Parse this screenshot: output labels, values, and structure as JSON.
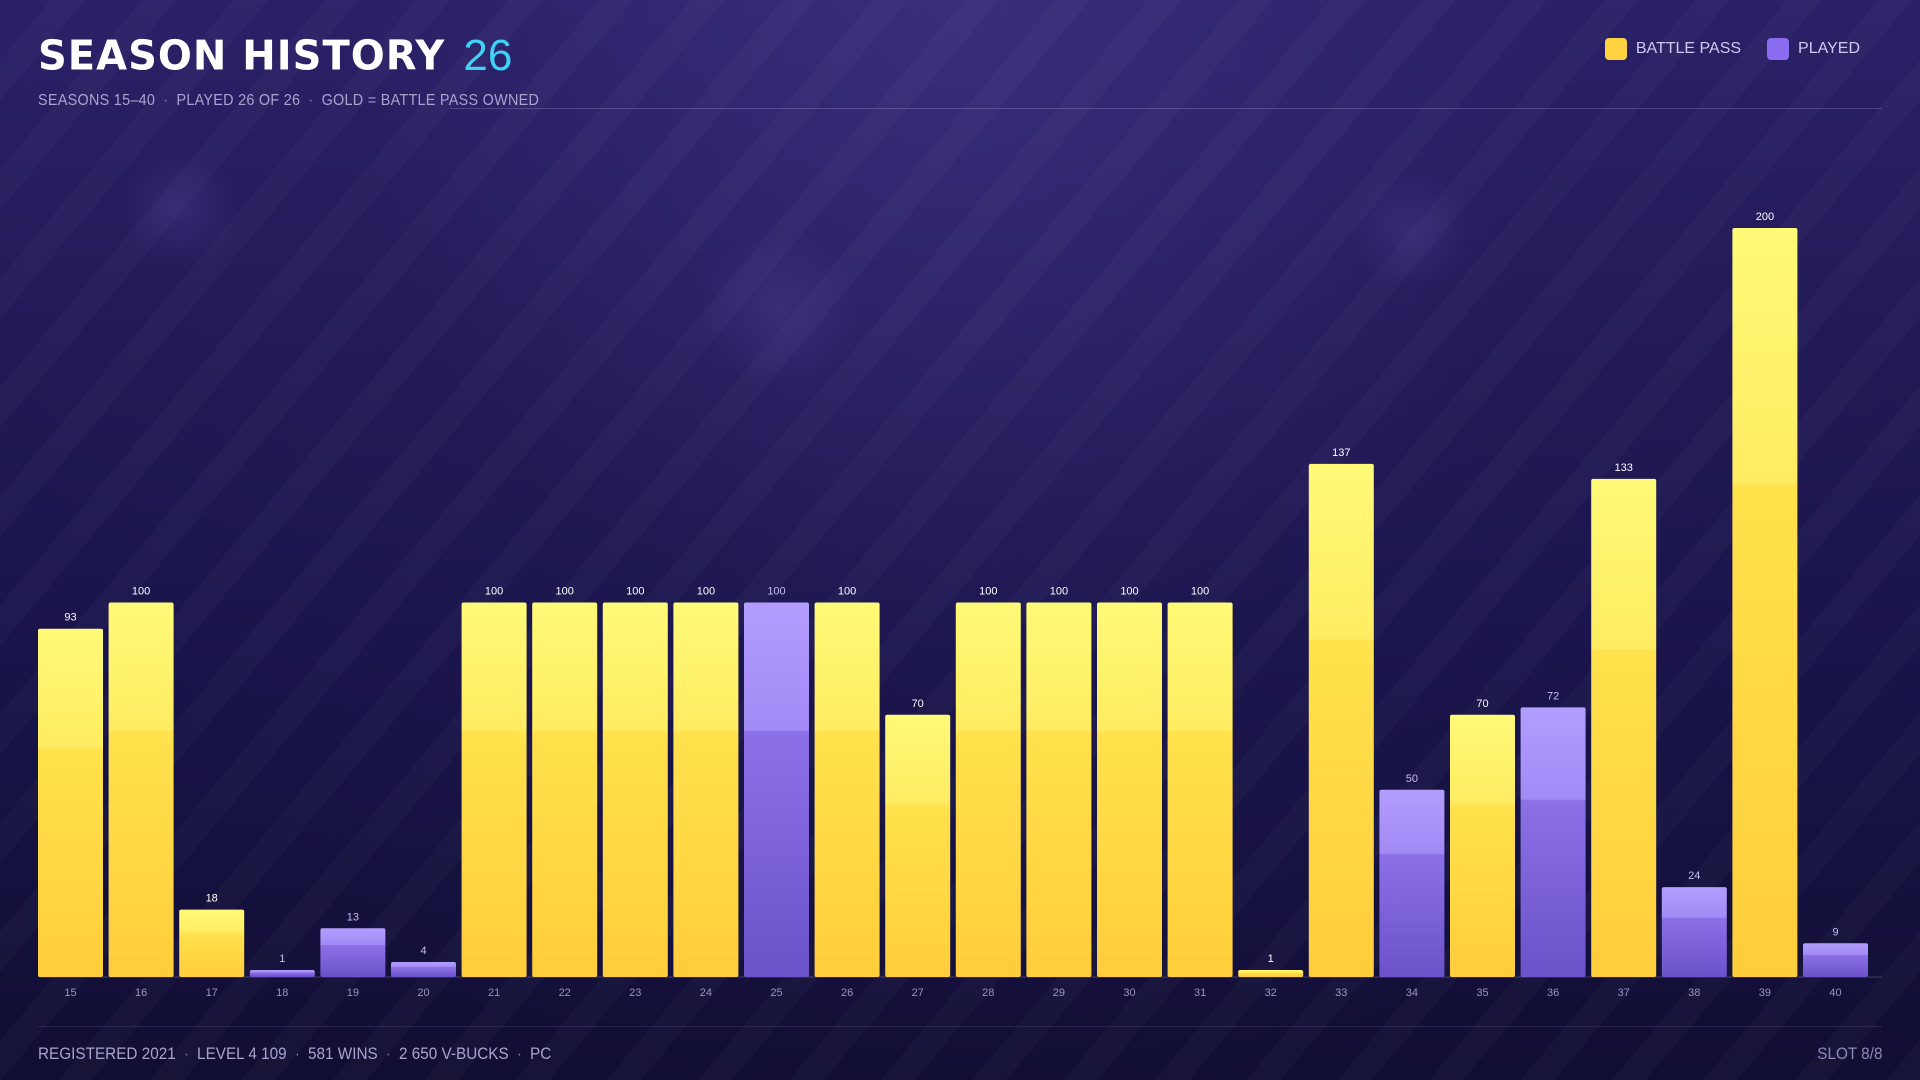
{
  "header": {
    "title": "SEASON HISTORY",
    "count": "26",
    "subtitle_parts": [
      "SEASONS 15–40",
      "PLAYED 26 OF 26",
      "GOLD = BATTLE PASS OWNED"
    ]
  },
  "legend": [
    {
      "label": "BATTLE PASS",
      "color": "#ffd23f"
    },
    {
      "label": "PLAYED",
      "color": "#8a6cf0"
    }
  ],
  "footer": {
    "registered": "REGISTERED 2021",
    "level": "LEVEL 4 109",
    "wins": "581 WINS",
    "vbucks": "2 650 V-BUCKS",
    "platform": "PC",
    "slot": "SLOT 8/8"
  },
  "colors": {
    "battle_pass": "#ffd23f",
    "played": "#8a6cf0",
    "accent": "#3fd2f5"
  },
  "chart_data": {
    "type": "bar",
    "title": "SEASON HISTORY",
    "categories": [
      "15",
      "16",
      "17",
      "18",
      "19",
      "20",
      "21",
      "22",
      "23",
      "24",
      "25",
      "26",
      "27",
      "28",
      "29",
      "30",
      "31",
      "32",
      "33",
      "34",
      "35",
      "36",
      "37",
      "38",
      "39",
      "40"
    ],
    "values": [
      93,
      100,
      18,
      1,
      13,
      4,
      100,
      100,
      100,
      100,
      100,
      100,
      70,
      100,
      100,
      100,
      100,
      1,
      137,
      50,
      70,
      72,
      133,
      24,
      200,
      9
    ],
    "battle_pass": [
      true,
      true,
      true,
      false,
      false,
      false,
      true,
      true,
      true,
      true,
      false,
      true,
      true,
      true,
      true,
      true,
      true,
      true,
      true,
      false,
      true,
      false,
      true,
      false,
      true,
      false
    ],
    "series": [
      {
        "name": "BATTLE PASS",
        "color": "#ffd23f"
      },
      {
        "name": "PLAYED",
        "color": "#8a6cf0"
      }
    ],
    "ylim": [
      0,
      200
    ],
    "grid": false,
    "legend_position": "top-right"
  }
}
